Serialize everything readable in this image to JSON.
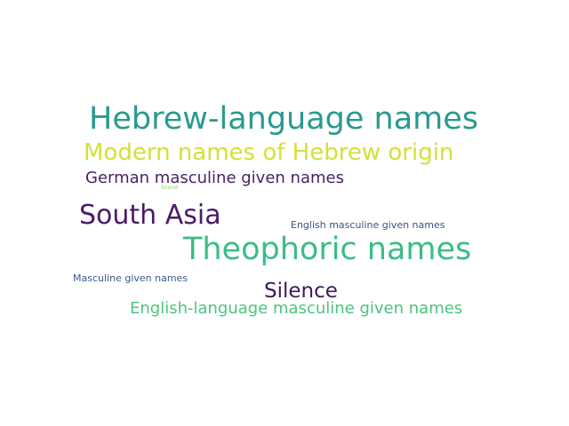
{
  "words": [
    {
      "key": "hebrew_language_names",
      "text": "Hebrew-language names",
      "color": "#2a9a8f"
    },
    {
      "key": "modern_names_hebrew",
      "text": "Modern names of Hebrew origin",
      "color": "#d4e03a"
    },
    {
      "key": "german_masculine",
      "text": "German masculine given names",
      "color": "#4a1f64"
    },
    {
      "key": "sound",
      "text": "Sound",
      "color": "#8fd66a"
    },
    {
      "key": "south_asia",
      "text": "South Asia",
      "color": "#4a1a6a"
    },
    {
      "key": "english_masculine",
      "text": "English masculine given names",
      "color": "#3d4f8a"
    },
    {
      "key": "theophoric",
      "text": "Theophoric names",
      "color": "#3bbd85"
    },
    {
      "key": "masculine_given",
      "text": "Masculine given names",
      "color": "#3a5a8c"
    },
    {
      "key": "silence",
      "text": "Silence",
      "color": "#3e1a5a"
    },
    {
      "key": "english_language_masculine",
      "text": "English-language masculine given names",
      "color": "#4cc47e"
    }
  ]
}
